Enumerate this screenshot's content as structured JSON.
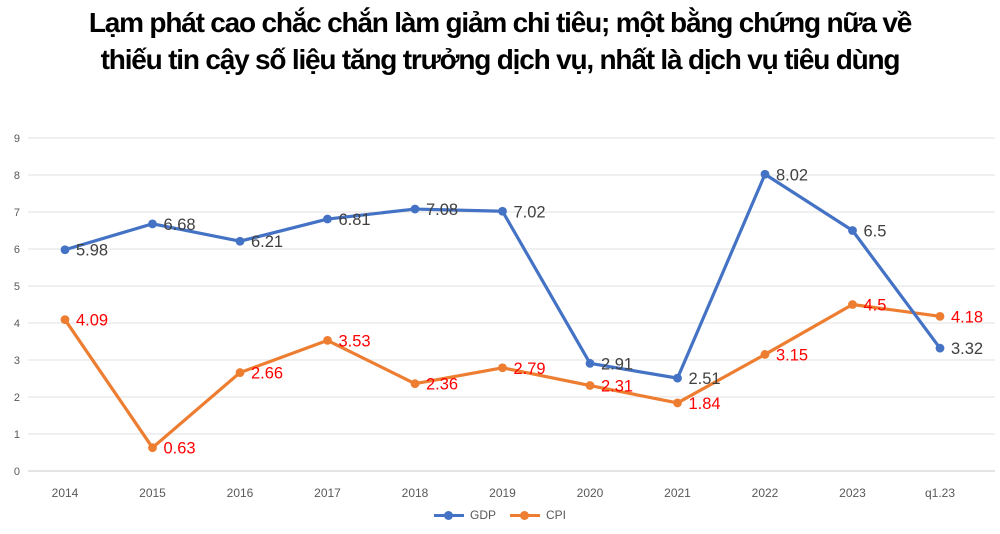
{
  "page": {
    "background": "#ffffff"
  },
  "title": {
    "line1": "Lạm phát cao chắc chắn làm giảm chi tiêu; một bằng chứng nữa về",
    "line2": "thiếu tin cậy số liệu tăng trưởng dịch vụ, nhất là dịch vụ tiêu dùng",
    "color": "#000000"
  },
  "chart_data": {
    "type": "line",
    "categories": [
      "2014",
      "2015",
      "2016",
      "2017",
      "2018",
      "2019",
      "2020",
      "2021",
      "2022",
      "2023",
      "q1.23"
    ],
    "series": [
      {
        "name": "GDP",
        "color": "#4472C4",
        "label_color": "#404040",
        "values": [
          5.98,
          6.68,
          6.21,
          6.81,
          7.08,
          7.02,
          2.91,
          2.51,
          8.02,
          6.5,
          3.32
        ]
      },
      {
        "name": "CPI",
        "color": "#ED7D31",
        "label_color": "#FF0000",
        "values": [
          4.09,
          0.63,
          2.66,
          3.53,
          2.36,
          2.79,
          2.31,
          1.84,
          3.15,
          4.5,
          4.18
        ]
      }
    ],
    "title": "",
    "xlabel": "",
    "ylabel": "",
    "ylim": [
      0,
      9
    ],
    "ytick_step": 1,
    "yticks": [
      0,
      1,
      2,
      3,
      4,
      5,
      6,
      7,
      8,
      9
    ],
    "grid": true,
    "data_labels": true,
    "legend_position": "bottom",
    "axis_text_color": "#595959",
    "gridline_color": "#E2E2E2",
    "zeroline_color": "#C9C9C9"
  }
}
